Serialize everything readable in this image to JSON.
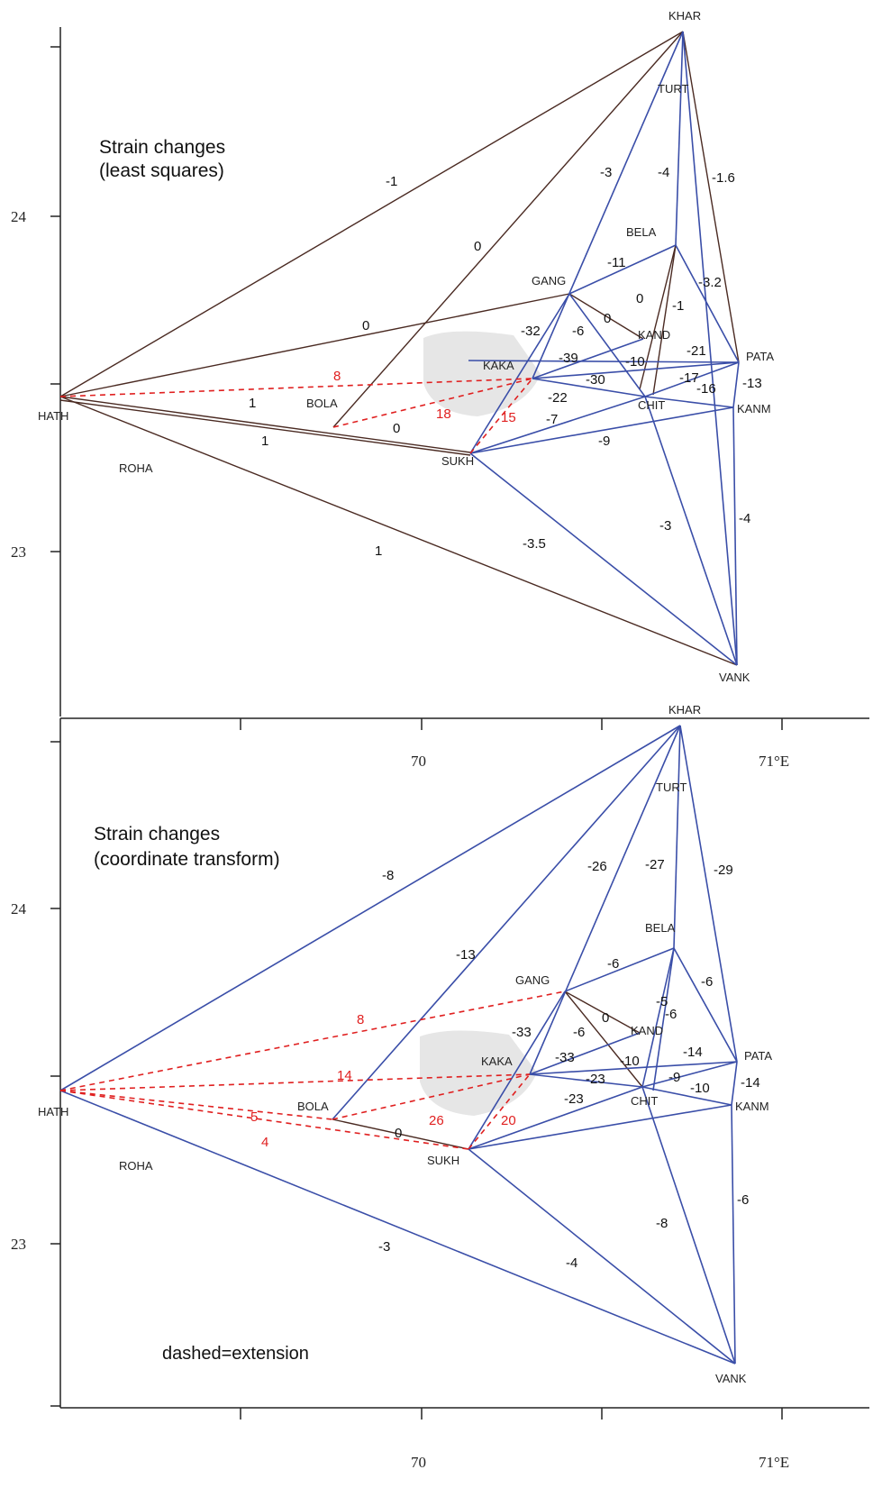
{
  "panels": [
    {
      "title_line1": "Strain changes",
      "title_line2": "(least squares)",
      "footnote": "",
      "lat_ticks": [
        "24",
        "23"
      ],
      "lon_ticks": [],
      "stations": [
        "KHAR",
        "TURT",
        "BELA",
        "GANG",
        "KAND",
        "KAKA",
        "PATA",
        "HATH",
        "BOLA",
        "CHIT",
        "KANM",
        "SUKH",
        "ROHA",
        "VANK"
      ],
      "values": [
        "-1",
        "0",
        "0",
        "-3",
        "-4",
        "-1.6",
        "-11",
        "-3.2",
        "0",
        "-1",
        "-32",
        "-6",
        "0",
        "-39",
        "-10",
        "-21",
        "-30",
        "-17",
        "-16",
        "-13",
        "-22",
        "-7",
        "-9",
        "1",
        "1",
        "0",
        "1",
        "-3",
        "-4",
        "-3.5"
      ],
      "extension_values": [
        "8",
        "18",
        "15"
      ]
    },
    {
      "title_line1": "Strain changes",
      "title_line2": "(coordinate  transform)",
      "footnote": "dashed=extension",
      "lat_ticks": [
        "24",
        "23"
      ],
      "lon_ticks": [
        "70",
        "71°E"
      ],
      "stations": [
        "KHAR",
        "TURT",
        "BELA",
        "GANG",
        "KAND",
        "KAKA",
        "PATA",
        "HATH",
        "BOLA",
        "CHIT",
        "KANM",
        "SUKH",
        "ROHA",
        "VANK"
      ],
      "values": [
        "-8",
        "-13",
        "-26",
        "-27",
        "-29",
        "-6",
        "-6",
        "-5",
        "-6",
        "-33",
        "-6",
        "0",
        "-33",
        "-10",
        "-14",
        "-23",
        "-9",
        "-10",
        "-14",
        "-23",
        "0",
        "-6",
        "-8",
        "-4",
        "-3"
      ],
      "extension_values": [
        "8",
        "14",
        "5",
        "26",
        "20",
        "4"
      ]
    }
  ],
  "between_lon_ticks": [
    "70",
    "71°E"
  ],
  "colors": {
    "blue": "#3a4ea8",
    "brown": "#4a2a22",
    "red": "#e02020",
    "axis": "#222222",
    "shade": "#e6e6e6"
  }
}
